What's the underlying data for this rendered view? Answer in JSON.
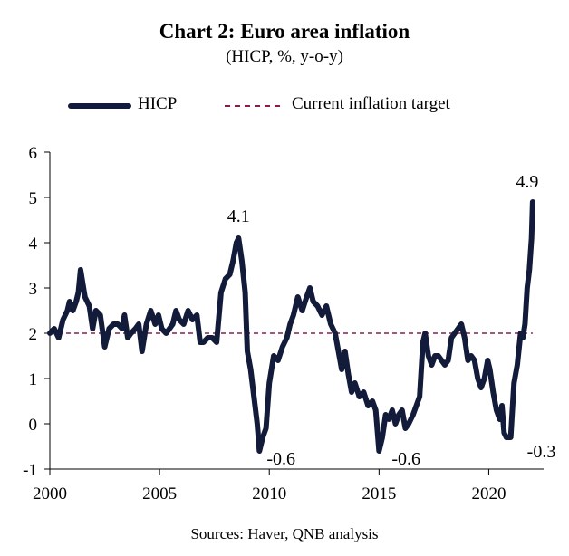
{
  "chart_data": {
    "type": "line",
    "title": "Chart 2: Euro area inflation",
    "subtitle": "(HICP, %, y-o-y)",
    "source": "Sources: Haver, QNB analysis",
    "xlabel": "",
    "ylabel": "",
    "xlim": [
      2000,
      2022.5
    ],
    "ylim": [
      -1,
      6
    ],
    "x_ticks": [
      2000,
      2005,
      2010,
      2015,
      2020
    ],
    "y_ticks": [
      -1,
      0,
      1,
      2,
      3,
      4,
      5,
      6
    ],
    "grid": false,
    "legend_position": "top",
    "series": [
      {
        "name": "HICP",
        "color": "#131b3a",
        "points": [
          [
            2000.0,
            2.0
          ],
          [
            2000.2,
            2.1
          ],
          [
            2000.4,
            1.9
          ],
          [
            2000.6,
            2.3
          ],
          [
            2000.8,
            2.5
          ],
          [
            2000.9,
            2.7
          ],
          [
            2001.05,
            2.5
          ],
          [
            2001.2,
            2.7
          ],
          [
            2001.3,
            2.9
          ],
          [
            2001.4,
            3.4
          ],
          [
            2001.6,
            2.8
          ],
          [
            2001.8,
            2.6
          ],
          [
            2001.95,
            2.1
          ],
          [
            2002.1,
            2.5
          ],
          [
            2002.3,
            2.4
          ],
          [
            2002.5,
            1.7
          ],
          [
            2002.7,
            2.1
          ],
          [
            2002.9,
            2.2
          ],
          [
            2003.1,
            2.2
          ],
          [
            2003.3,
            2.1
          ],
          [
            2003.4,
            2.4
          ],
          [
            2003.55,
            1.9
          ],
          [
            2003.7,
            2.0
          ],
          [
            2003.9,
            2.1
          ],
          [
            2004.05,
            2.2
          ],
          [
            2004.2,
            1.6
          ],
          [
            2004.4,
            2.2
          ],
          [
            2004.6,
            2.5
          ],
          [
            2004.8,
            2.2
          ],
          [
            2004.95,
            2.4
          ],
          [
            2005.1,
            2.1
          ],
          [
            2005.3,
            2.0
          ],
          [
            2005.45,
            2.1
          ],
          [
            2005.6,
            2.2
          ],
          [
            2005.75,
            2.5
          ],
          [
            2005.9,
            2.3
          ],
          [
            2006.1,
            2.2
          ],
          [
            2006.3,
            2.5
          ],
          [
            2006.5,
            2.3
          ],
          [
            2006.7,
            2.4
          ],
          [
            2006.85,
            1.8
          ],
          [
            2007.0,
            1.8
          ],
          [
            2007.2,
            1.9
          ],
          [
            2007.4,
            1.9
          ],
          [
            2007.6,
            1.8
          ],
          [
            2007.8,
            2.9
          ],
          [
            2008.0,
            3.2
          ],
          [
            2008.2,
            3.3
          ],
          [
            2008.35,
            3.6
          ],
          [
            2008.5,
            4.0
          ],
          [
            2008.6,
            4.1
          ],
          [
            2008.75,
            3.6
          ],
          [
            2008.9,
            2.9
          ],
          [
            2009.0,
            1.6
          ],
          [
            2009.15,
            1.2
          ],
          [
            2009.3,
            0.6
          ],
          [
            2009.45,
            0.0
          ],
          [
            2009.55,
            -0.6
          ],
          [
            2009.7,
            -0.3
          ],
          [
            2009.85,
            -0.1
          ],
          [
            2010.0,
            0.9
          ],
          [
            2010.2,
            1.5
          ],
          [
            2010.4,
            1.4
          ],
          [
            2010.6,
            1.7
          ],
          [
            2010.8,
            1.9
          ],
          [
            2010.95,
            2.2
          ],
          [
            2011.1,
            2.4
          ],
          [
            2011.3,
            2.8
          ],
          [
            2011.5,
            2.5
          ],
          [
            2011.7,
            2.8
          ],
          [
            2011.85,
            3.0
          ],
          [
            2012.0,
            2.7
          ],
          [
            2012.2,
            2.6
          ],
          [
            2012.4,
            2.4
          ],
          [
            2012.6,
            2.6
          ],
          [
            2012.8,
            2.2
          ],
          [
            2013.0,
            2.0
          ],
          [
            2013.15,
            1.6
          ],
          [
            2013.3,
            1.2
          ],
          [
            2013.45,
            1.6
          ],
          [
            2013.6,
            1.1
          ],
          [
            2013.75,
            0.7
          ],
          [
            2013.9,
            0.9
          ],
          [
            2014.1,
            0.6
          ],
          [
            2014.3,
            0.7
          ],
          [
            2014.5,
            0.4
          ],
          [
            2014.7,
            0.5
          ],
          [
            2014.85,
            0.3
          ],
          [
            2015.0,
            -0.6
          ],
          [
            2015.15,
            -0.3
          ],
          [
            2015.3,
            0.2
          ],
          [
            2015.45,
            0.1
          ],
          [
            2015.6,
            0.3
          ],
          [
            2015.75,
            0.0
          ],
          [
            2015.9,
            0.2
          ],
          [
            2016.05,
            0.3
          ],
          [
            2016.2,
            -0.1
          ],
          [
            2016.35,
            0.0
          ],
          [
            2016.55,
            0.2
          ],
          [
            2016.7,
            0.4
          ],
          [
            2016.85,
            0.6
          ],
          [
            2017.0,
            1.8
          ],
          [
            2017.1,
            2.0
          ],
          [
            2017.25,
            1.5
          ],
          [
            2017.4,
            1.3
          ],
          [
            2017.55,
            1.5
          ],
          [
            2017.7,
            1.5
          ],
          [
            2017.85,
            1.4
          ],
          [
            2018.0,
            1.3
          ],
          [
            2018.15,
            1.4
          ],
          [
            2018.3,
            1.9
          ],
          [
            2018.45,
            2.0
          ],
          [
            2018.6,
            2.1
          ],
          [
            2018.75,
            2.2
          ],
          [
            2018.9,
            1.9
          ],
          [
            2019.05,
            1.4
          ],
          [
            2019.2,
            1.5
          ],
          [
            2019.35,
            1.4
          ],
          [
            2019.5,
            1.0
          ],
          [
            2019.65,
            0.8
          ],
          [
            2019.8,
            1.0
          ],
          [
            2019.95,
            1.4
          ],
          [
            2020.05,
            1.2
          ],
          [
            2020.2,
            0.7
          ],
          [
            2020.35,
            0.3
          ],
          [
            2020.5,
            0.1
          ],
          [
            2020.6,
            0.4
          ],
          [
            2020.7,
            -0.2
          ],
          [
            2020.8,
            -0.3
          ],
          [
            2020.9,
            -0.3
          ],
          [
            2021.0,
            -0.3
          ],
          [
            2021.15,
            0.9
          ],
          [
            2021.3,
            1.3
          ],
          [
            2021.45,
            2.0
          ],
          [
            2021.55,
            1.9
          ],
          [
            2021.65,
            2.2
          ],
          [
            2021.75,
            3.0
          ],
          [
            2021.85,
            3.4
          ],
          [
            2021.95,
            4.1
          ],
          [
            2022.0,
            4.9
          ]
        ]
      },
      {
        "name": "Current inflation target",
        "color": "#8b1a4f",
        "style": "dashed",
        "points": [
          [
            2000.0,
            2.0
          ],
          [
            2022.0,
            2.0
          ]
        ]
      }
    ],
    "annotations": [
      {
        "text": "4.1",
        "x": 2008.6,
        "y": 4.1
      },
      {
        "text": "-0.6",
        "x": 2009.55,
        "y": -0.6
      },
      {
        "text": "-0.6",
        "x": 2015.0,
        "y": -0.6
      },
      {
        "text": "4.9",
        "x": 2022.0,
        "y": 4.9
      },
      {
        "text": "-0.3",
        "x": 2021.0,
        "y": -0.3
      }
    ]
  }
}
